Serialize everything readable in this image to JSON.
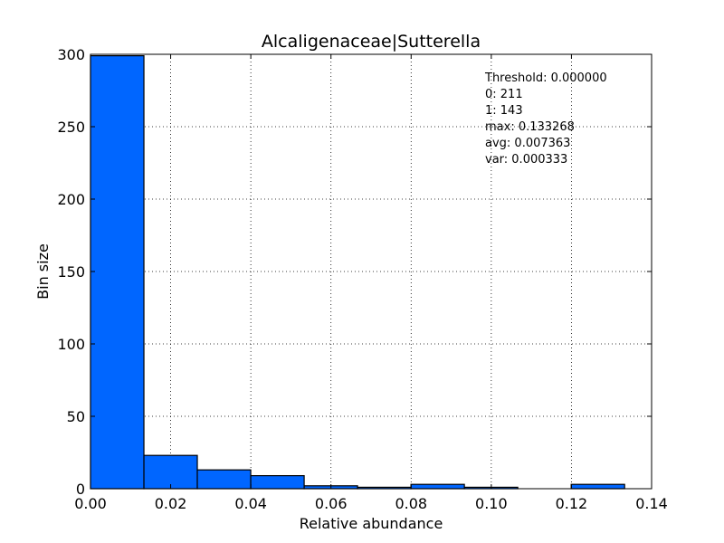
{
  "chart_data": {
    "type": "bar",
    "title": "Alcaligenaceae|Sutterella",
    "xlabel": "Relative abundance",
    "ylabel": "Bin size",
    "xlim": [
      0.0,
      0.14
    ],
    "ylim": [
      0,
      300
    ],
    "x_ticks": [
      "0.00",
      "0.02",
      "0.04",
      "0.06",
      "0.08",
      "0.10",
      "0.12",
      "0.14"
    ],
    "y_ticks": [
      "0",
      "50",
      "100",
      "150",
      "200",
      "250",
      "300"
    ],
    "grid": true,
    "bar_color": "#0066ff",
    "bins": [
      {
        "start": 0.0,
        "end": 0.01333,
        "count": 299
      },
      {
        "start": 0.01333,
        "end": 0.02665,
        "count": 23
      },
      {
        "start": 0.02665,
        "end": 0.03998,
        "count": 13
      },
      {
        "start": 0.03998,
        "end": 0.05331,
        "count": 9
      },
      {
        "start": 0.05331,
        "end": 0.06663,
        "count": 2
      },
      {
        "start": 0.06663,
        "end": 0.07996,
        "count": 1
      },
      {
        "start": 0.07996,
        "end": 0.09329,
        "count": 3
      },
      {
        "start": 0.09329,
        "end": 0.10661,
        "count": 1
      },
      {
        "start": 0.10661,
        "end": 0.11994,
        "count": 0
      },
      {
        "start": 0.11994,
        "end": 0.133268,
        "count": 3
      }
    ],
    "annotations": [
      "Threshold: 0.000000",
      "0: 211",
      "1: 143",
      "max: 0.133268",
      "avg: 0.007363",
      "var: 0.000333"
    ]
  }
}
